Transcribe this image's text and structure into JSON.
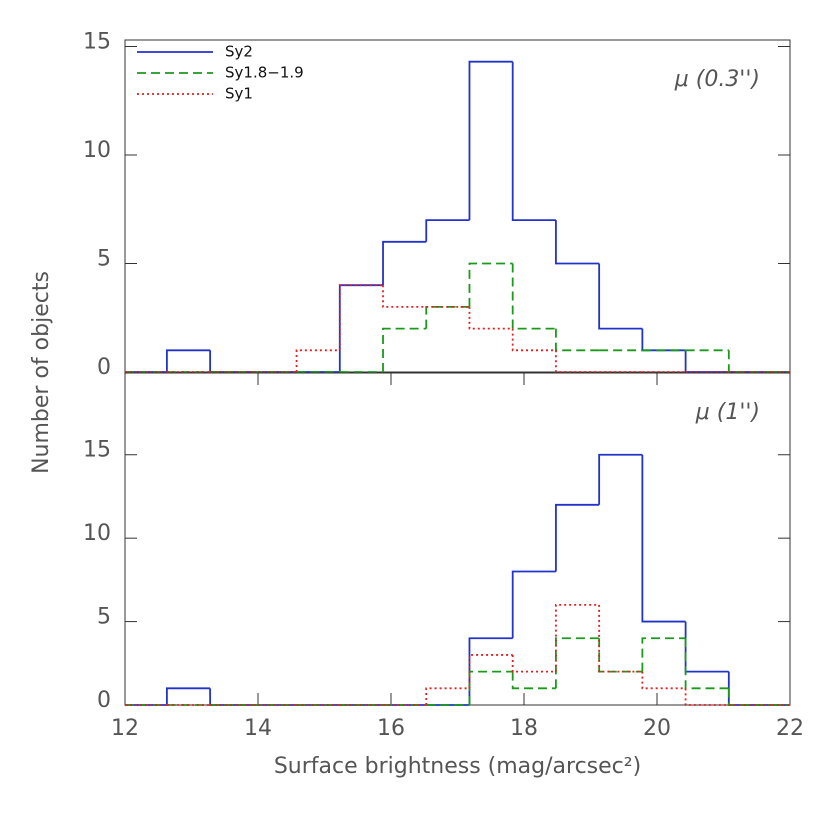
{
  "chart_data": [
    {
      "type": "histogram",
      "ylabel": "Number of objects",
      "annotation": "μ (0.3'')",
      "bins": [
        12.63,
        13.28,
        13.93,
        14.58,
        15.23,
        15.88,
        16.53,
        17.18,
        17.83,
        18.48,
        19.13,
        19.78,
        20.43,
        21.08,
        21.73
      ],
      "series": [
        {
          "name": "Sy2",
          "color": "#2233cc",
          "linestyle": "solid",
          "values": [
            1,
            0,
            0,
            0,
            4,
            6,
            7,
            14.3,
            7,
            5,
            2,
            1,
            0,
            0
          ]
        },
        {
          "name": "Sy1.8−1.9",
          "color": "#1a9a1a",
          "linestyle": "dashed",
          "values": [
            0,
            0,
            0,
            0,
            0,
            2,
            3,
            5,
            2,
            1,
            1,
            1,
            1,
            0
          ]
        },
        {
          "name": "Sy1",
          "color": "#e02020",
          "linestyle": "dotted",
          "values": [
            0,
            0,
            0,
            1,
            4,
            3,
            3,
            2,
            1,
            0,
            0,
            0,
            0,
            0
          ]
        }
      ],
      "xlim": [
        12,
        22
      ],
      "ylim": [
        0,
        15.3
      ],
      "yticks": [
        0,
        5,
        10,
        15
      ],
      "legend": "upper left"
    },
    {
      "type": "histogram",
      "annotation": "μ (1'')",
      "xlabel": "Surface brightness (mag/arcsec²)",
      "bins": [
        12.63,
        13.28,
        13.93,
        14.58,
        15.23,
        15.88,
        16.53,
        17.18,
        17.83,
        18.48,
        19.13,
        19.78,
        20.43,
        21.08,
        21.73
      ],
      "series": [
        {
          "name": "Sy2",
          "color": "#2233cc",
          "linestyle": "solid",
          "values": [
            1,
            0,
            0,
            0,
            0,
            0,
            0,
            4,
            8,
            12,
            15,
            5,
            2,
            0
          ]
        },
        {
          "name": "Sy1.8−1.9",
          "color": "#1a9a1a",
          "linestyle": "dashed",
          "values": [
            0,
            0,
            0,
            0,
            0,
            0,
            0,
            2,
            1,
            4,
            2,
            4,
            1,
            0
          ]
        },
        {
          "name": "Sy1",
          "color": "#e02020",
          "linestyle": "dotted",
          "values": [
            0,
            0,
            0,
            0,
            0,
            0,
            1,
            3,
            2,
            6,
            2,
            1,
            0,
            0
          ]
        }
      ],
      "xlim": [
        12,
        22
      ],
      "xticks": [
        12,
        14,
        16,
        18,
        20,
        22
      ],
      "ylim": [
        0,
        19.9
      ],
      "yticks": [
        0,
        5,
        10,
        15
      ]
    }
  ]
}
